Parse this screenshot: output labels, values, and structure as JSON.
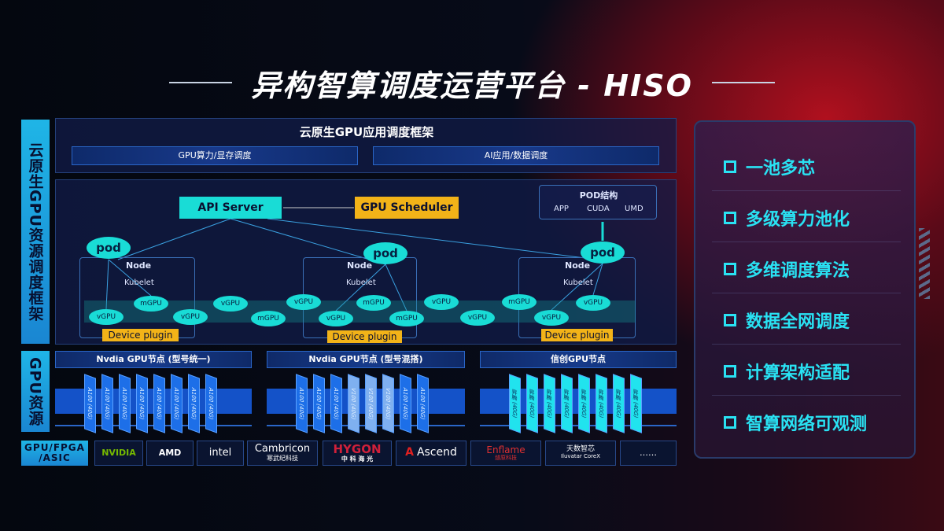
{
  "title": "异构智算调度运营平台 - HISO",
  "left_labels": {
    "top": "云原生GPU资源调度框架",
    "middle": "GPU资源",
    "bottom": "GPU/FPGA /ASIC"
  },
  "framework": {
    "title": "云原生GPU应用调度框架",
    "bars": [
      "GPU算力/显存调度",
      "AI应用/数据调度"
    ]
  },
  "control": {
    "api_server": "API Server",
    "scheduler": "GPU Scheduler"
  },
  "pod_structure": {
    "title": "POD结构",
    "items": [
      "APP",
      "CUDA",
      "UMD"
    ]
  },
  "nodes": [
    {
      "label": "Node",
      "kubelet": "Kubelet",
      "pod": "pod",
      "plugin": "Device plugin"
    },
    {
      "label": "Node",
      "kubelet": "Kubelet",
      "pod": "pod",
      "plugin": "Device plugin"
    },
    {
      "label": "Node",
      "kubelet": "Kubelet",
      "pod": "pod",
      "plugin": "Device plugin"
    }
  ],
  "virtual_gpus": [
    "vGPU",
    "mGPU",
    "vGPU",
    "vGPU",
    "mGPU",
    "vGPU",
    "vGPU",
    "mGPU",
    "mGPU",
    "vGPU",
    "vGPU",
    "mGPU",
    "vGPU",
    "vGPU"
  ],
  "gpu_nodes": [
    {
      "title": "Nvdia GPU节点 (型号统一)",
      "cards": [
        "A100 (40G)",
        "A100 (40G)",
        "A100 (40G)",
        "A100 (40G)",
        "A100 (40G)",
        "A100 (40G)",
        "A100 (40G)",
        "A100 (40G)"
      ]
    },
    {
      "title": "Nvdia GPU节点 (型号混搭)",
      "cards": [
        "A100 (40G)",
        "A100 (40G)",
        "A100 (40G)",
        "V100 (40G)",
        "V100 (40G)",
        "V100 (40G)",
        "A100 (40G)",
        "A100 (40G)"
      ]
    },
    {
      "title": "信创GPU节点",
      "cards": [
        "昇腾 (40G)",
        "昇腾 (40G)",
        "昇腾 (40G)",
        "昇腾 (40G)",
        "昇腾 (40G)",
        "昇腾 (40G)",
        "昇腾 (40G)",
        "昇腾 (40G)"
      ]
    }
  ],
  "vendors": [
    {
      "name": "NVIDIA"
    },
    {
      "name": "AMD"
    },
    {
      "name": "intel"
    },
    {
      "name": "Cambricon",
      "sub": "寒武纪科技"
    },
    {
      "name": "HYGON",
      "sub": "中 科 海 光"
    },
    {
      "name": "Ascend"
    },
    {
      "name": "Enflame",
      "sub": "燧原科技"
    },
    {
      "name": "天数智芯",
      "sub": "Iluvatar CoreX"
    },
    {
      "name": "……"
    }
  ],
  "features": [
    "一池多芯",
    "多级算力池化",
    "多维调度算法",
    "数据全网调度",
    "计算架构适配",
    "智算网络可观测"
  ],
  "colors": {
    "cyan": "#19dcd6",
    "gold": "#f2b318",
    "accent_text": "#29e2f3"
  }
}
